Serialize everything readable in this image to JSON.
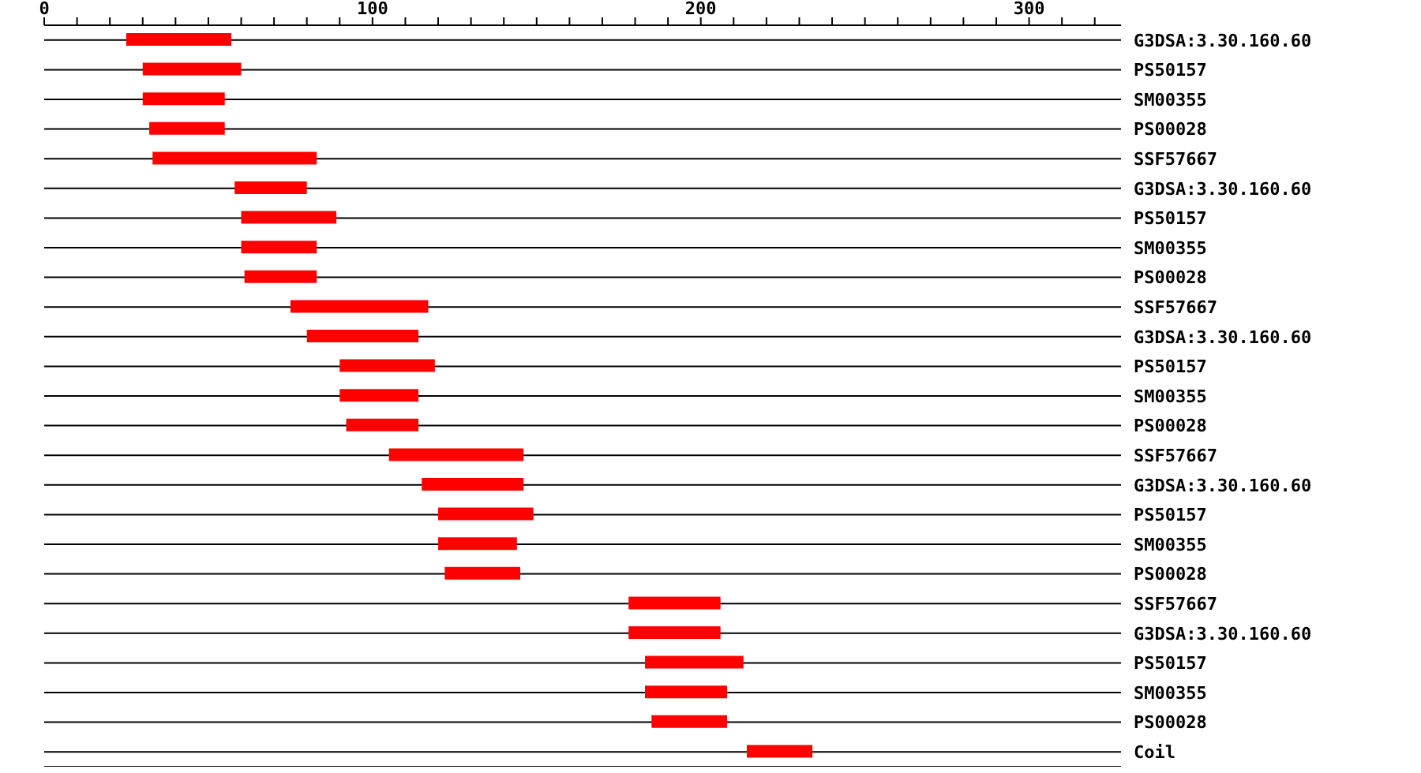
{
  "chart_data": {
    "type": "bar",
    "orientation": "horizontal",
    "categories": [
      "G3DSA:3.30.160.60",
      "PS50157",
      "SM00355",
      "PS00028",
      "SSF57667",
      "G3DSA:3.30.160.60",
      "PS50157",
      "SM00355",
      "PS00028",
      "SSF57667",
      "G3DSA:3.30.160.60",
      "PS50157",
      "SM00355",
      "PS00028",
      "SSF57667",
      "G3DSA:3.30.160.60",
      "PS50157",
      "SM00355",
      "PS00028",
      "SSF57667",
      "G3DSA:3.30.160.60",
      "PS50157",
      "SM00355",
      "PS00028",
      "Coil"
    ],
    "base": [
      25,
      30,
      30,
      32,
      33,
      58,
      60,
      60,
      61,
      75,
      80,
      90,
      90,
      92,
      105,
      115,
      120,
      120,
      122,
      178,
      178,
      183,
      183,
      185,
      214
    ],
    "values": [
      32,
      30,
      25,
      23,
      50,
      22,
      29,
      23,
      22,
      42,
      34,
      29,
      24,
      22,
      41,
      31,
      29,
      24,
      23,
      28,
      28,
      30,
      25,
      23,
      20
    ],
    "color": "#ff0000",
    "xlim": [
      0,
      328
    ],
    "xticks": [
      0,
      {
        "value": 10,
        "label": null
      },
      {
        "value": 20,
        "label": null
      },
      {
        "value": 30,
        "label": null
      },
      {
        "value": 40,
        "label": null
      },
      {
        "value": 50,
        "label": null
      },
      {
        "value": 60,
        "label": null
      },
      {
        "value": 70,
        "label": null
      },
      {
        "value": 80,
        "label": null
      },
      {
        "value": 90,
        "label": null
      },
      100,
      {
        "value": 110,
        "label": null
      },
      {
        "value": 120,
        "label": null
      },
      {
        "value": 130,
        "label": null
      },
      {
        "value": 140,
        "label": null
      },
      {
        "value": 150,
        "label": null
      },
      {
        "value": 160,
        "label": null
      },
      {
        "value": 170,
        "label": null
      },
      {
        "value": 180,
        "label": null
      },
      {
        "value": 190,
        "label": null
      },
      200,
      {
        "value": 210,
        "label": null
      },
      {
        "value": 220,
        "label": null
      },
      {
        "value": 230,
        "label": null
      },
      {
        "value": 240,
        "label": null
      },
      {
        "value": 250,
        "label": null
      },
      {
        "value": 260,
        "label": null
      },
      {
        "value": 270,
        "label": null
      },
      {
        "value": 280,
        "label": null
      },
      {
        "value": 290,
        "label": null
      },
      300,
      {
        "value": 310,
        "label": null
      },
      {
        "value": 320,
        "label": null
      }
    ],
    "grid": "y",
    "legend": false
  }
}
